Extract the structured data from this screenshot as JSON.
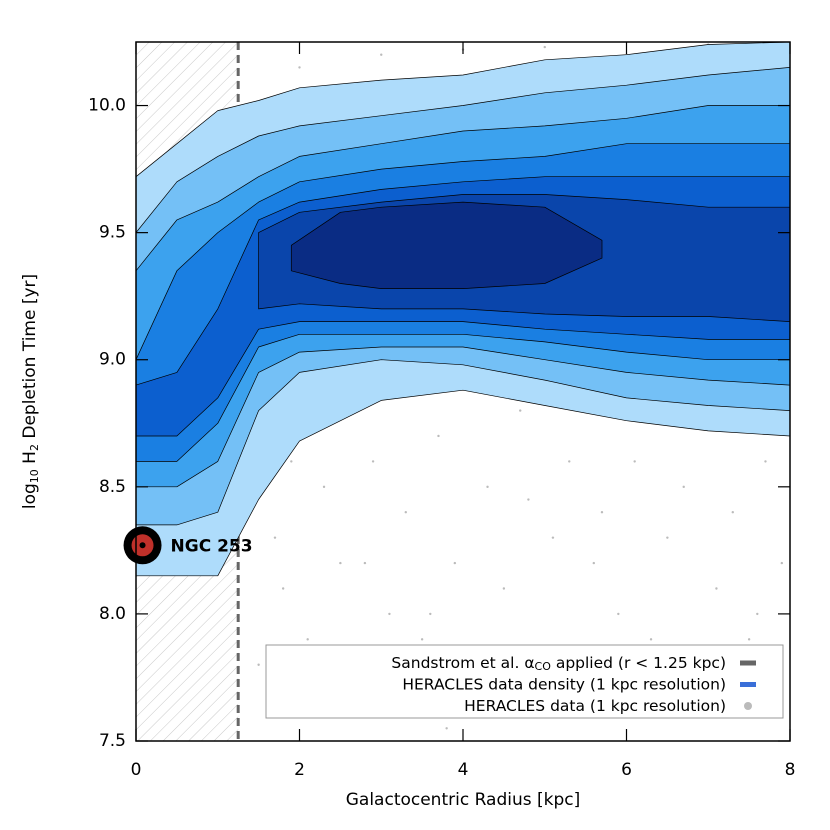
{
  "chart_data": {
    "type": "contour",
    "xlabel": "Galactocentric Radius [kpc]",
    "ylabel": [
      "log",
      "10",
      " H",
      "2",
      " Depletion Time [yr]"
    ],
    "xlim": [
      0,
      8
    ],
    "ylim": [
      7.5,
      10.25
    ],
    "xticks": [
      0,
      2,
      4,
      6,
      8
    ],
    "yticks": [
      7.5,
      {
        "value": 8,
        "label": "8.0"
      },
      8.5,
      {
        "value": 9,
        "label": "9.0"
      },
      9.5,
      {
        "value": 10,
        "label": "10.0"
      }
    ],
    "levels": [
      {
        "color": "#aedcfb",
        "x": [
          0,
          0.5,
          1,
          1.5,
          2,
          3,
          4,
          5,
          6,
          7,
          8
        ],
        "upper": [
          9.72,
          9.85,
          9.98,
          10.02,
          10.07,
          10.1,
          10.12,
          10.18,
          10.2,
          10.24,
          10.25
        ],
        "lower": [
          8.15,
          8.15,
          8.15,
          8.45,
          8.68,
          8.84,
          8.88,
          8.82,
          8.76,
          8.72,
          8.7
        ]
      },
      {
        "color": "#74c0f6",
        "x": [
          0,
          0.5,
          1,
          1.5,
          2,
          3,
          4,
          5,
          6,
          7,
          8
        ],
        "upper": [
          9.5,
          9.7,
          9.8,
          9.88,
          9.92,
          9.96,
          10.0,
          10.05,
          10.08,
          10.12,
          10.15
        ],
        "lower": [
          8.35,
          8.35,
          8.4,
          8.8,
          8.95,
          9.0,
          8.98,
          8.92,
          8.85,
          8.82,
          8.8
        ]
      },
      {
        "color": "#3ca2ee",
        "x": [
          0,
          0.5,
          1,
          1.5,
          2,
          3,
          4,
          5,
          6,
          7,
          8
        ],
        "upper": [
          9.35,
          9.55,
          9.62,
          9.72,
          9.8,
          9.85,
          9.9,
          9.92,
          9.95,
          10.0,
          10.0
        ],
        "lower": [
          8.5,
          8.5,
          8.6,
          8.95,
          9.03,
          9.05,
          9.05,
          9.0,
          8.95,
          8.92,
          8.9
        ]
      },
      {
        "color": "#1a7fe2",
        "x": [
          0,
          0.5,
          1,
          1.5,
          2,
          3,
          4,
          5,
          6,
          7,
          8
        ],
        "upper": [
          9.0,
          9.35,
          9.5,
          9.62,
          9.7,
          9.75,
          9.78,
          9.8,
          9.85,
          9.85,
          9.85
        ],
        "lower": [
          8.6,
          8.6,
          8.75,
          9.05,
          9.1,
          9.1,
          9.1,
          9.07,
          9.03,
          9.0,
          9.0
        ]
      },
      {
        "color": "#0c5fcf",
        "x": [
          0,
          0.5,
          1,
          1.5,
          2,
          3,
          4,
          5,
          6,
          7,
          8
        ],
        "upper": [
          8.9,
          8.95,
          9.2,
          9.55,
          9.62,
          9.67,
          9.7,
          9.72,
          9.72,
          9.72,
          9.72
        ],
        "lower": [
          8.7,
          8.7,
          8.85,
          9.12,
          9.15,
          9.15,
          9.15,
          9.12,
          9.1,
          9.08,
          9.08
        ]
      },
      {
        "color": "#0a45ab",
        "x": [
          1.5,
          2,
          3,
          4,
          5,
          6,
          7,
          8
        ],
        "upper": [
          9.5,
          9.58,
          9.62,
          9.65,
          9.65,
          9.63,
          9.6,
          9.6
        ],
        "lower": [
          9.2,
          9.22,
          9.2,
          9.2,
          9.18,
          9.17,
          9.17,
          9.15
        ]
      },
      {
        "color": "#0a2c84",
        "x": [
          1.9,
          2.5,
          3,
          4,
          5,
          5.7
        ],
        "upper": [
          9.45,
          9.58,
          9.6,
          9.62,
          9.6,
          9.47
        ],
        "lower": [
          9.35,
          9.3,
          9.28,
          9.28,
          9.3,
          9.4
        ]
      }
    ],
    "scatter": {
      "color": "#bbbbbb",
      "x": [
        1.5,
        1.7,
        1.9,
        2.1,
        2.3,
        2.5,
        2.7,
        2.9,
        3.1,
        3.3,
        3.5,
        3.7,
        3.9,
        4.1,
        4.3,
        4.5,
        4.7,
        4.9,
        5.1,
        5.3,
        5.5,
        5.7,
        5.9,
        6.1,
        6.3,
        6.5,
        6.7,
        6.9,
        7.1,
        7.3,
        7.5,
        7.7,
        7.9,
        2.0,
        3.0,
        4.0,
        5.0,
        6.0,
        7.0,
        2.6,
        3.6,
        4.6,
        5.6,
        6.6,
        7.6,
        1.8,
        2.8,
        3.8,
        4.8
      ],
      "y": [
        7.8,
        8.3,
        8.6,
        7.9,
        8.5,
        8.2,
        7.7,
        8.6,
        8.0,
        8.4,
        7.9,
        8.7,
        8.2,
        7.6,
        8.5,
        8.1,
        8.8,
        7.8,
        8.3,
        8.6,
        7.7,
        8.4,
        8.0,
        8.6,
        7.9,
        8.3,
        8.5,
        7.8,
        8.1,
        8.4,
        7.9,
        8.6,
        8.2,
        10.15,
        10.2,
        10.22,
        10.23,
        10.2,
        10.24,
        7.6,
        8.0,
        7.7,
        8.2,
        7.6,
        8.0,
        8.1,
        8.2,
        7.55,
        8.45
      ]
    },
    "cutoff": {
      "value": 1.25,
      "color": "#666666"
    },
    "marker": {
      "label": "NGC 253",
      "x": 0.08,
      "y": 8.27
    },
    "legend": {
      "entries": [
        {
          "label": [
            "Sandstrom et al. α",
            "CO",
            " applied (r < 1.25 kpc)"
          ],
          "color": "#666666"
        },
        {
          "label": [
            "HERACLES data density (1 kpc resolution)"
          ],
          "color": "#3a6fd8"
        },
        {
          "label": [
            "HERACLES data (1 kpc resolution)"
          ],
          "color": "#bbbbbb"
        }
      ]
    }
  }
}
